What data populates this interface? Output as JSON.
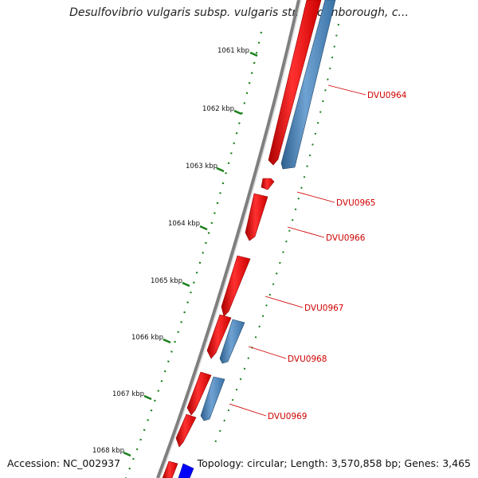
{
  "title": "Desulfovibrio vulgaris subsp. vulgaris str. Hildenborough, c...",
  "footer": {
    "accession": "Accession: NC_002937",
    "topology": "Topology: circular; Length: 3,570,858 bp; Genes: 3,465"
  },
  "ruler": {
    "ticks": [
      "1061 kbp",
      "1062 kbp",
      "1063 kbp",
      "1064 kbp",
      "1065 kbp",
      "1066 kbp",
      "1067 kbp",
      "1068 kbp"
    ]
  },
  "genes": [
    {
      "label": "DVU0964"
    },
    {
      "label": "DVU0965"
    },
    {
      "label": "DVU0966"
    },
    {
      "label": "DVU0967"
    },
    {
      "label": "DVU0968"
    },
    {
      "label": "DVU0969"
    }
  ],
  "colors": {
    "forward_feature": "#ff0000",
    "reverse_feature": "#4a86bf",
    "backbone": "#7f7f7f",
    "ruler": "#1a7f1a",
    "label": "#d00000",
    "blue_feature": "#0000ff"
  }
}
